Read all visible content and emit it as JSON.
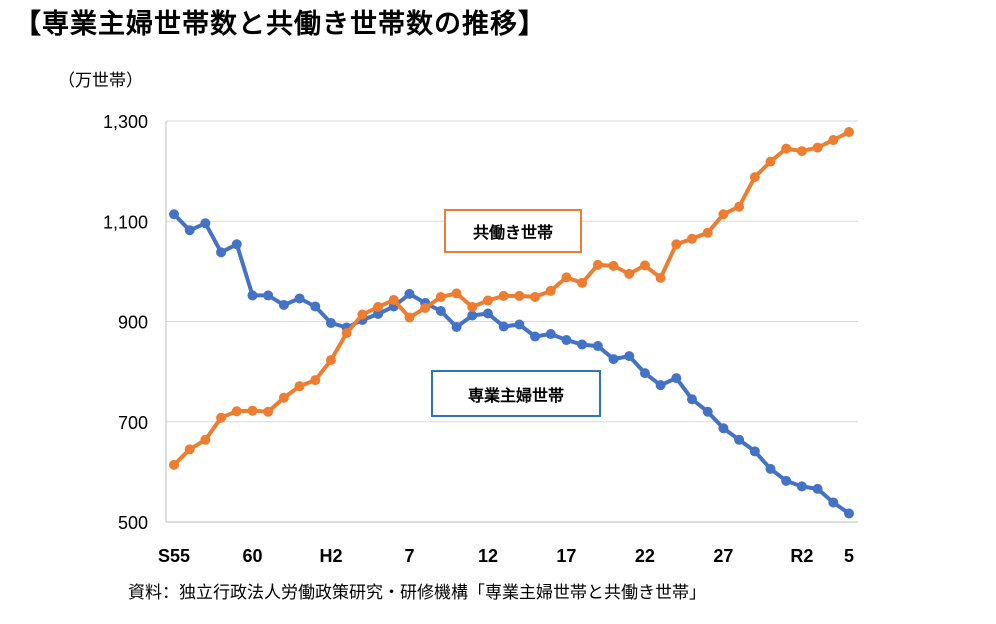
{
  "title": "【専業主婦世帯数と共働き世帯数の推移】",
  "unit_label": "（万世帯）",
  "source": "資料：独立行政法人労働政策研究・研修機構「専業主婦世帯と共働き世帯」",
  "chart_data": {
    "type": "line",
    "ylim": [
      500,
      1300
    ],
    "y_ticks": [
      "1,300",
      "1,100",
      "900",
      "700",
      "500"
    ],
    "y_tick_values": [
      1300,
      1100,
      900,
      700,
      500
    ],
    "x_tick_labels": [
      "S55",
      "60",
      "H2",
      "7",
      "12",
      "17",
      "22",
      "27",
      "R2",
      "5"
    ],
    "x_tick_positions": [
      1980,
      1985,
      1990,
      1995,
      2000,
      2005,
      2010,
      2015,
      2020,
      2023
    ],
    "grid": true,
    "x": [
      1980,
      1981,
      1982,
      1983,
      1984,
      1985,
      1986,
      1987,
      1988,
      1989,
      1990,
      1991,
      1992,
      1993,
      1994,
      1995,
      1996,
      1997,
      1998,
      1999,
      2000,
      2001,
      2002,
      2003,
      2004,
      2005,
      2006,
      2007,
      2008,
      2009,
      2010,
      2011,
      2012,
      2013,
      2014,
      2015,
      2016,
      2017,
      2018,
      2019,
      2020,
      2021,
      2022,
      2023
    ],
    "series": [
      {
        "name": "専業主婦世帯",
        "color": "#4472C4",
        "values": [
          1114,
          1082,
          1096,
          1038,
          1054,
          952,
          952,
          933,
          946,
          930,
          897,
          888,
          903,
          915,
          930,
          955,
          937,
          921,
          889,
          912,
          916,
          890,
          894,
          870,
          875,
          863,
          854,
          851,
          825,
          831,
          797,
          773,
          787,
          745,
          720,
          687,
          664,
          641,
          606,
          582,
          571,
          566,
          539,
          517
        ]
      },
      {
        "name": "共働き世帯",
        "color": "#ED7D31",
        "values": [
          614,
          645,
          664,
          708,
          721,
          722,
          720,
          748,
          771,
          783,
          823,
          877,
          914,
          929,
          943,
          908,
          927,
          949,
          956,
          929,
          942,
          951,
          951,
          949,
          961,
          988,
          977,
          1013,
          1011,
          995,
          1012,
          987,
          1054,
          1065,
          1077,
          1114,
          1129,
          1188,
          1219,
          1245,
          1240,
          1247,
          1262,
          1278
        ]
      }
    ]
  }
}
